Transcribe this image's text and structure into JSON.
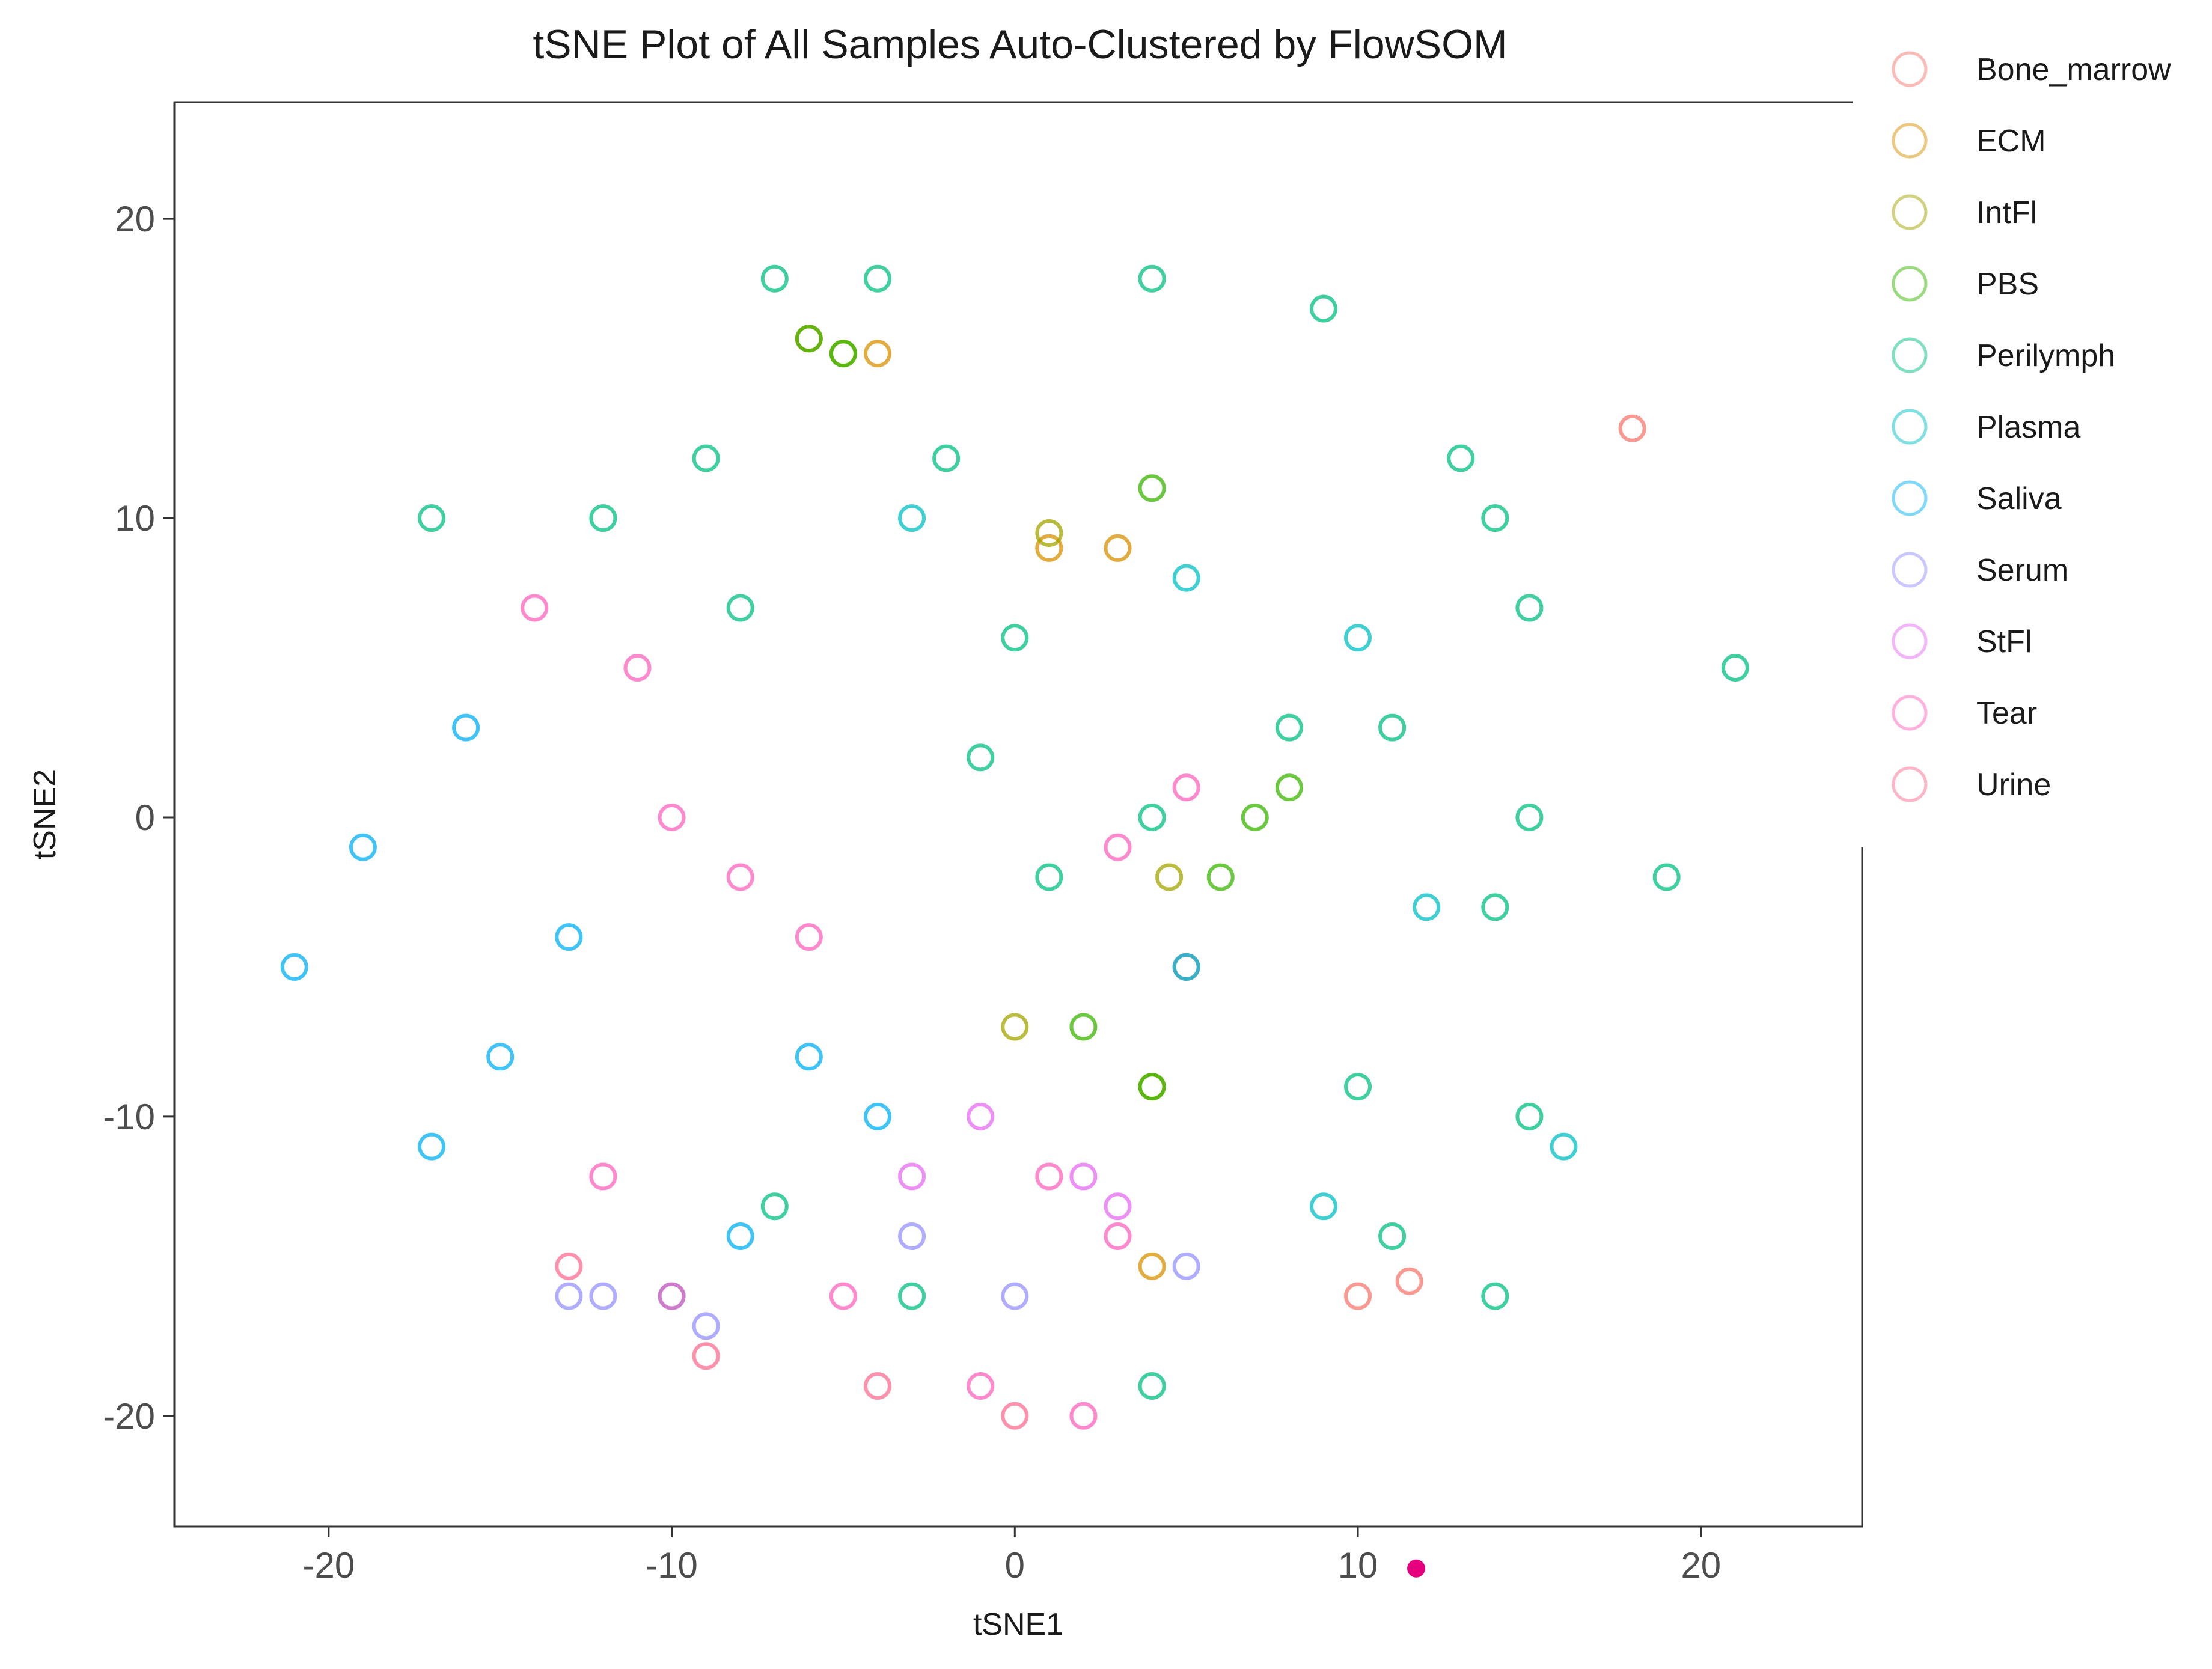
{
  "chart_data": {
    "type": "scatter",
    "title": "tSNE Plot of All Samples Auto-Clustered by FlowSOM",
    "xlabel": "tSNE1",
    "ylabel": "tSNE2",
    "xlim": [
      -24.5,
      24.7
    ],
    "ylim": [
      -23.7,
      23.9
    ],
    "x_ticks": [
      -20,
      -10,
      0,
      10,
      20
    ],
    "y_ticks": [
      -20,
      -10,
      0,
      10,
      20
    ],
    "x_tick_labels": [
      "-20",
      "-10",
      "0",
      "10",
      "20"
    ],
    "y_tick_labels": [
      "-20",
      "-10",
      "0",
      "10",
      "20"
    ],
    "grid": false,
    "legend_position": "right",
    "marker": "open-circle",
    "series": [
      {
        "name": "Bone_marrow",
        "color": "#F8766D",
        "points": [
          [
            10,
            -16
          ],
          [
            11.5,
            -15.5
          ],
          [
            18,
            13
          ]
        ]
      },
      {
        "name": "ECM",
        "color": "#D89000",
        "points": [
          [
            -6,
            16
          ],
          [
            -4,
            15.5
          ],
          [
            1,
            9
          ],
          [
            3,
            9
          ],
          [
            5,
            -5
          ],
          [
            4,
            -15
          ]
        ]
      },
      {
        "name": "IntFl",
        "color": "#A3A500",
        "points": [
          [
            -5,
            15.5
          ],
          [
            1,
            9.5
          ],
          [
            4.5,
            -2
          ],
          [
            0,
            -7
          ],
          [
            4,
            -9
          ]
        ]
      },
      {
        "name": "PBS",
        "color": "#39B600",
        "points": [
          [
            -6,
            16
          ],
          [
            -5,
            15.5
          ],
          [
            4,
            11
          ],
          [
            6,
            -2
          ],
          [
            7,
            0
          ],
          [
            8,
            1
          ],
          [
            2,
            -7
          ],
          [
            4,
            -9
          ]
        ]
      },
      {
        "name": "Perilymph",
        "color": "#00BF7D",
        "points": [
          [
            -7,
            18
          ],
          [
            -4,
            18
          ],
          [
            4,
            18
          ],
          [
            9,
            17
          ],
          [
            -9,
            12
          ],
          [
            -2,
            12
          ],
          [
            -17,
            10
          ],
          [
            -12,
            10
          ],
          [
            -8,
            7
          ],
          [
            0,
            6
          ],
          [
            -1,
            2
          ],
          [
            1,
            -2
          ],
          [
            4,
            0
          ],
          [
            8,
            3
          ],
          [
            11,
            3
          ],
          [
            13,
            12
          ],
          [
            14,
            10
          ],
          [
            15,
            7
          ],
          [
            15,
            0
          ],
          [
            14,
            -3
          ],
          [
            19,
            -2
          ],
          [
            21,
            5
          ],
          [
            10,
            -9
          ],
          [
            15,
            -10
          ],
          [
            11,
            -14
          ],
          [
            4,
            -19
          ],
          [
            -7,
            -13
          ],
          [
            -3,
            -16
          ],
          [
            14,
            -16
          ]
        ]
      },
      {
        "name": "Plasma",
        "color": "#00BFC4",
        "points": [
          [
            -3,
            10
          ],
          [
            5,
            8
          ],
          [
            10,
            6
          ],
          [
            12,
            -3
          ],
          [
            16,
            -11
          ],
          [
            9,
            -13
          ]
        ]
      },
      {
        "name": "Saliva",
        "color": "#00B0F6",
        "points": [
          [
            -19,
            -1
          ],
          [
            -16,
            3
          ],
          [
            -21,
            -5
          ],
          [
            -15,
            -8
          ],
          [
            -13,
            -4
          ],
          [
            -17,
            -11
          ],
          [
            -6,
            -8
          ],
          [
            -4,
            -10
          ],
          [
            5,
            -5
          ],
          [
            -8,
            -14
          ],
          [
            -10,
            -16
          ]
        ]
      },
      {
        "name": "Serum",
        "color": "#9590FF",
        "points": [
          [
            -13,
            -16
          ],
          [
            -12,
            -16
          ],
          [
            -9,
            -17
          ],
          [
            -3,
            -14
          ],
          [
            0,
            -16
          ],
          [
            5,
            -15
          ]
        ]
      },
      {
        "name": "StFl",
        "color": "#E76BF3",
        "points": [
          [
            -1,
            -10
          ],
          [
            2,
            -12
          ],
          [
            3,
            -13
          ],
          [
            -3,
            -12
          ]
        ]
      },
      {
        "name": "Tear",
        "color": "#FF62BC",
        "points": [
          [
            -14,
            7
          ],
          [
            -11,
            5
          ],
          [
            -10,
            0
          ],
          [
            -8,
            -2
          ],
          [
            -6,
            -4
          ],
          [
            3,
            -1
          ],
          [
            5,
            1
          ],
          [
            -12,
            -12
          ],
          [
            -10,
            -16
          ],
          [
            -5,
            -16
          ],
          [
            -1,
            -19
          ],
          [
            2,
            -20
          ],
          [
            1,
            -12
          ],
          [
            3,
            -14
          ]
        ]
      },
      {
        "name": "Urine",
        "color": "#FF6C91",
        "points": [
          [
            -9,
            -18
          ],
          [
            -4,
            -19
          ],
          [
            0,
            -20
          ],
          [
            -13,
            -15
          ]
        ]
      }
    ],
    "annotation_point": {
      "x": 11.7,
      "y": -25.1,
      "color": "#E6007E"
    }
  }
}
